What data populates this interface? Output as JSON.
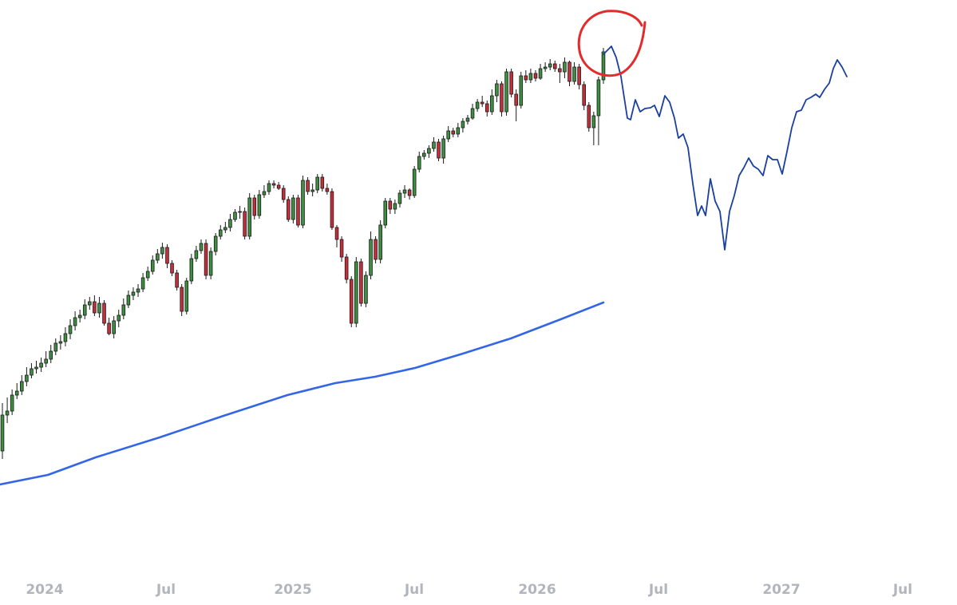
{
  "chart_data": {
    "type": "candlestick",
    "title": "",
    "xlabel": "",
    "ylabel": "",
    "grid": false,
    "legend": "none",
    "x_ticks": [
      "2024",
      "Jul",
      "2025",
      "Jul",
      "2026",
      "Jul",
      "2027",
      "Jul"
    ],
    "candle_colors": {
      "up": "#3e8e41",
      "down": "#c62e3a",
      "wick": "#1a1a1a",
      "border": "#1a1a1a"
    },
    "candles": [
      [
        565,
        520,
        575,
        505
      ],
      [
        520,
        515,
        530,
        498
      ],
      [
        515,
        495,
        520,
        488
      ],
      [
        495,
        490,
        500,
        480
      ],
      [
        490,
        478,
        495,
        470
      ],
      [
        478,
        470,
        484,
        460
      ],
      [
        470,
        462,
        474,
        455
      ],
      [
        462,
        460,
        468,
        452
      ],
      [
        460,
        455,
        466,
        448
      ],
      [
        455,
        450,
        460,
        440
      ],
      [
        450,
        440,
        455,
        432
      ],
      [
        440,
        430,
        445,
        424
      ],
      [
        430,
        428,
        438,
        420
      ],
      [
        428,
        418,
        434,
        410
      ],
      [
        418,
        408,
        425,
        400
      ],
      [
        408,
        398,
        414,
        390
      ],
      [
        398,
        395,
        404,
        388
      ],
      [
        395,
        382,
        400,
        375
      ],
      [
        382,
        378,
        388,
        372
      ],
      [
        378,
        392,
        396,
        370
      ],
      [
        392,
        380,
        398,
        372
      ],
      [
        380,
        405,
        408,
        376
      ],
      [
        405,
        418,
        420,
        398
      ],
      [
        418,
        402,
        424,
        396
      ],
      [
        402,
        395,
        410,
        388
      ],
      [
        395,
        382,
        400,
        374
      ],
      [
        382,
        370,
        386,
        364
      ],
      [
        370,
        366,
        376,
        360
      ],
      [
        366,
        362,
        372,
        356
      ],
      [
        362,
        348,
        366,
        342
      ],
      [
        348,
        340,
        352,
        334
      ],
      [
        340,
        326,
        344,
        320
      ],
      [
        326,
        318,
        330,
        312
      ],
      [
        318,
        310,
        324,
        304
      ],
      [
        310,
        330,
        336,
        306
      ],
      [
        330,
        342,
        346,
        326
      ],
      [
        342,
        360,
        364,
        338
      ],
      [
        360,
        390,
        396,
        356
      ],
      [
        390,
        352,
        394,
        348
      ],
      [
        352,
        324,
        356,
        318
      ],
      [
        324,
        314,
        328,
        308
      ],
      [
        314,
        305,
        318,
        300
      ],
      [
        305,
        345,
        350,
        300
      ],
      [
        345,
        315,
        350,
        310
      ],
      [
        315,
        296,
        320,
        292
      ],
      [
        296,
        288,
        300,
        282
      ],
      [
        288,
        285,
        292,
        278
      ],
      [
        285,
        275,
        290,
        268
      ],
      [
        275,
        266,
        278,
        262
      ],
      [
        266,
        265,
        274,
        258
      ],
      [
        265,
        296,
        300,
        260
      ],
      [
        296,
        248,
        300,
        242
      ],
      [
        248,
        270,
        275,
        244
      ],
      [
        270,
        244,
        274,
        238
      ],
      [
        244,
        240,
        248,
        232
      ],
      [
        240,
        230,
        244,
        226
      ],
      [
        230,
        232,
        236,
        226
      ],
      [
        232,
        236,
        238,
        228
      ],
      [
        236,
        250,
        254,
        232
      ],
      [
        250,
        275,
        278,
        246
      ],
      [
        275,
        248,
        280,
        244
      ],
      [
        248,
        282,
        285,
        244
      ],
      [
        282,
        226,
        286,
        220
      ],
      [
        226,
        240,
        244,
        222
      ],
      [
        240,
        238,
        246,
        230
      ],
      [
        238,
        222,
        242,
        218
      ],
      [
        222,
        236,
        240,
        218
      ],
      [
        236,
        240,
        244,
        230
      ],
      [
        240,
        285,
        288,
        236
      ],
      [
        285,
        300,
        310,
        282
      ],
      [
        300,
        322,
        328,
        296
      ],
      [
        322,
        350,
        355,
        318
      ],
      [
        350,
        405,
        410,
        346
      ],
      [
        405,
        328,
        410,
        322
      ],
      [
        328,
        380,
        384,
        324
      ],
      [
        380,
        345,
        385,
        340
      ],
      [
        345,
        300,
        350,
        290
      ],
      [
        300,
        325,
        330,
        296
      ],
      [
        325,
        282,
        330,
        276
      ],
      [
        282,
        252,
        286,
        248
      ],
      [
        252,
        262,
        268,
        248
      ],
      [
        262,
        255,
        268,
        250
      ],
      [
        255,
        242,
        260,
        238
      ],
      [
        242,
        238,
        248,
        232
      ],
      [
        238,
        245,
        250,
        236
      ],
      [
        245,
        212,
        248,
        208
      ],
      [
        212,
        196,
        216,
        190
      ],
      [
        196,
        192,
        200,
        188
      ],
      [
        192,
        186,
        198,
        182
      ],
      [
        186,
        178,
        190,
        172
      ],
      [
        178,
        198,
        202,
        174
      ],
      [
        198,
        174,
        205,
        170
      ],
      [
        174,
        164,
        178,
        158
      ],
      [
        164,
        168,
        172,
        160
      ],
      [
        168,
        160,
        172,
        154
      ],
      [
        160,
        152,
        166,
        148
      ],
      [
        152,
        148,
        156,
        144
      ],
      [
        148,
        136,
        150,
        130
      ],
      [
        136,
        128,
        140,
        124
      ],
      [
        128,
        130,
        134,
        120
      ],
      [
        130,
        140,
        146,
        126
      ],
      [
        140,
        120,
        144,
        112
      ],
      [
        120,
        105,
        128,
        100
      ],
      [
        105,
        140,
        146,
        102
      ],
      [
        140,
        90,
        145,
        86
      ],
      [
        90,
        118,
        122,
        86
      ],
      [
        118,
        132,
        152,
        112
      ],
      [
        132,
        95,
        136,
        90
      ],
      [
        95,
        100,
        104,
        88
      ],
      [
        100,
        92,
        104,
        86
      ],
      [
        92,
        98,
        102,
        88
      ],
      [
        98,
        86,
        100,
        80
      ],
      [
        86,
        84,
        90,
        78
      ],
      [
        84,
        80,
        88,
        74
      ],
      [
        80,
        86,
        90,
        76
      ],
      [
        86,
        90,
        104,
        80
      ],
      [
        90,
        78,
        98,
        72
      ],
      [
        78,
        102,
        108,
        76
      ],
      [
        102,
        84,
        106,
        78
      ],
      [
        84,
        106,
        112,
        80
      ],
      [
        106,
        132,
        138,
        102
      ],
      [
        132,
        160,
        165,
        128
      ],
      [
        160,
        145,
        182,
        140
      ],
      [
        145,
        100,
        182,
        96
      ],
      [
        100,
        65,
        105,
        60
      ]
    ],
    "projection": {
      "color": "#1a3fa0",
      "points": [
        [
          756,
          68
        ],
        [
          766,
          58
        ],
        [
          772,
          72
        ],
        [
          778,
          96
        ],
        [
          786,
          148
        ],
        [
          790,
          150
        ],
        [
          796,
          125
        ],
        [
          802,
          140
        ],
        [
          808,
          136
        ],
        [
          815,
          135
        ],
        [
          820,
          132
        ],
        [
          826,
          146
        ],
        [
          833,
          120
        ],
        [
          839,
          128
        ],
        [
          845,
          148
        ],
        [
          850,
          173
        ],
        [
          856,
          168
        ],
        [
          862,
          185
        ],
        [
          868,
          230
        ],
        [
          874,
          270
        ],
        [
          879,
          258
        ],
        [
          884,
          270
        ],
        [
          890,
          224
        ],
        [
          896,
          252
        ],
        [
          902,
          265
        ],
        [
          908,
          313
        ],
        [
          914,
          265
        ],
        [
          920,
          245
        ],
        [
          926,
          220
        ],
        [
          932,
          210
        ],
        [
          938,
          198
        ],
        [
          944,
          208
        ],
        [
          950,
          212
        ],
        [
          956,
          220
        ],
        [
          962,
          195
        ],
        [
          968,
          200
        ],
        [
          974,
          200
        ],
        [
          980,
          218
        ],
        [
          986,
          190
        ],
        [
          992,
          160
        ],
        [
          998,
          140
        ],
        [
          1004,
          138
        ],
        [
          1010,
          125
        ],
        [
          1016,
          122
        ],
        [
          1022,
          118
        ],
        [
          1027,
          122
        ],
        [
          1033,
          112
        ],
        [
          1039,
          104
        ],
        [
          1044,
          86
        ],
        [
          1049,
          75
        ],
        [
          1055,
          84
        ],
        [
          1061,
          96
        ]
      ]
    },
    "moving_average": {
      "color": "#3366e6",
      "points": [
        [
          0,
          607
        ],
        [
          60,
          595
        ],
        [
          120,
          573
        ],
        [
          200,
          548
        ],
        [
          280,
          521
        ],
        [
          360,
          495
        ],
        [
          420,
          480
        ],
        [
          470,
          472
        ],
        [
          520,
          461
        ],
        [
          580,
          443
        ],
        [
          640,
          424
        ],
        [
          700,
          401
        ],
        [
          756,
          379
        ]
      ]
    },
    "annotation": {
      "type": "hand-drawn-circle",
      "color": "#e32b2b"
    }
  }
}
